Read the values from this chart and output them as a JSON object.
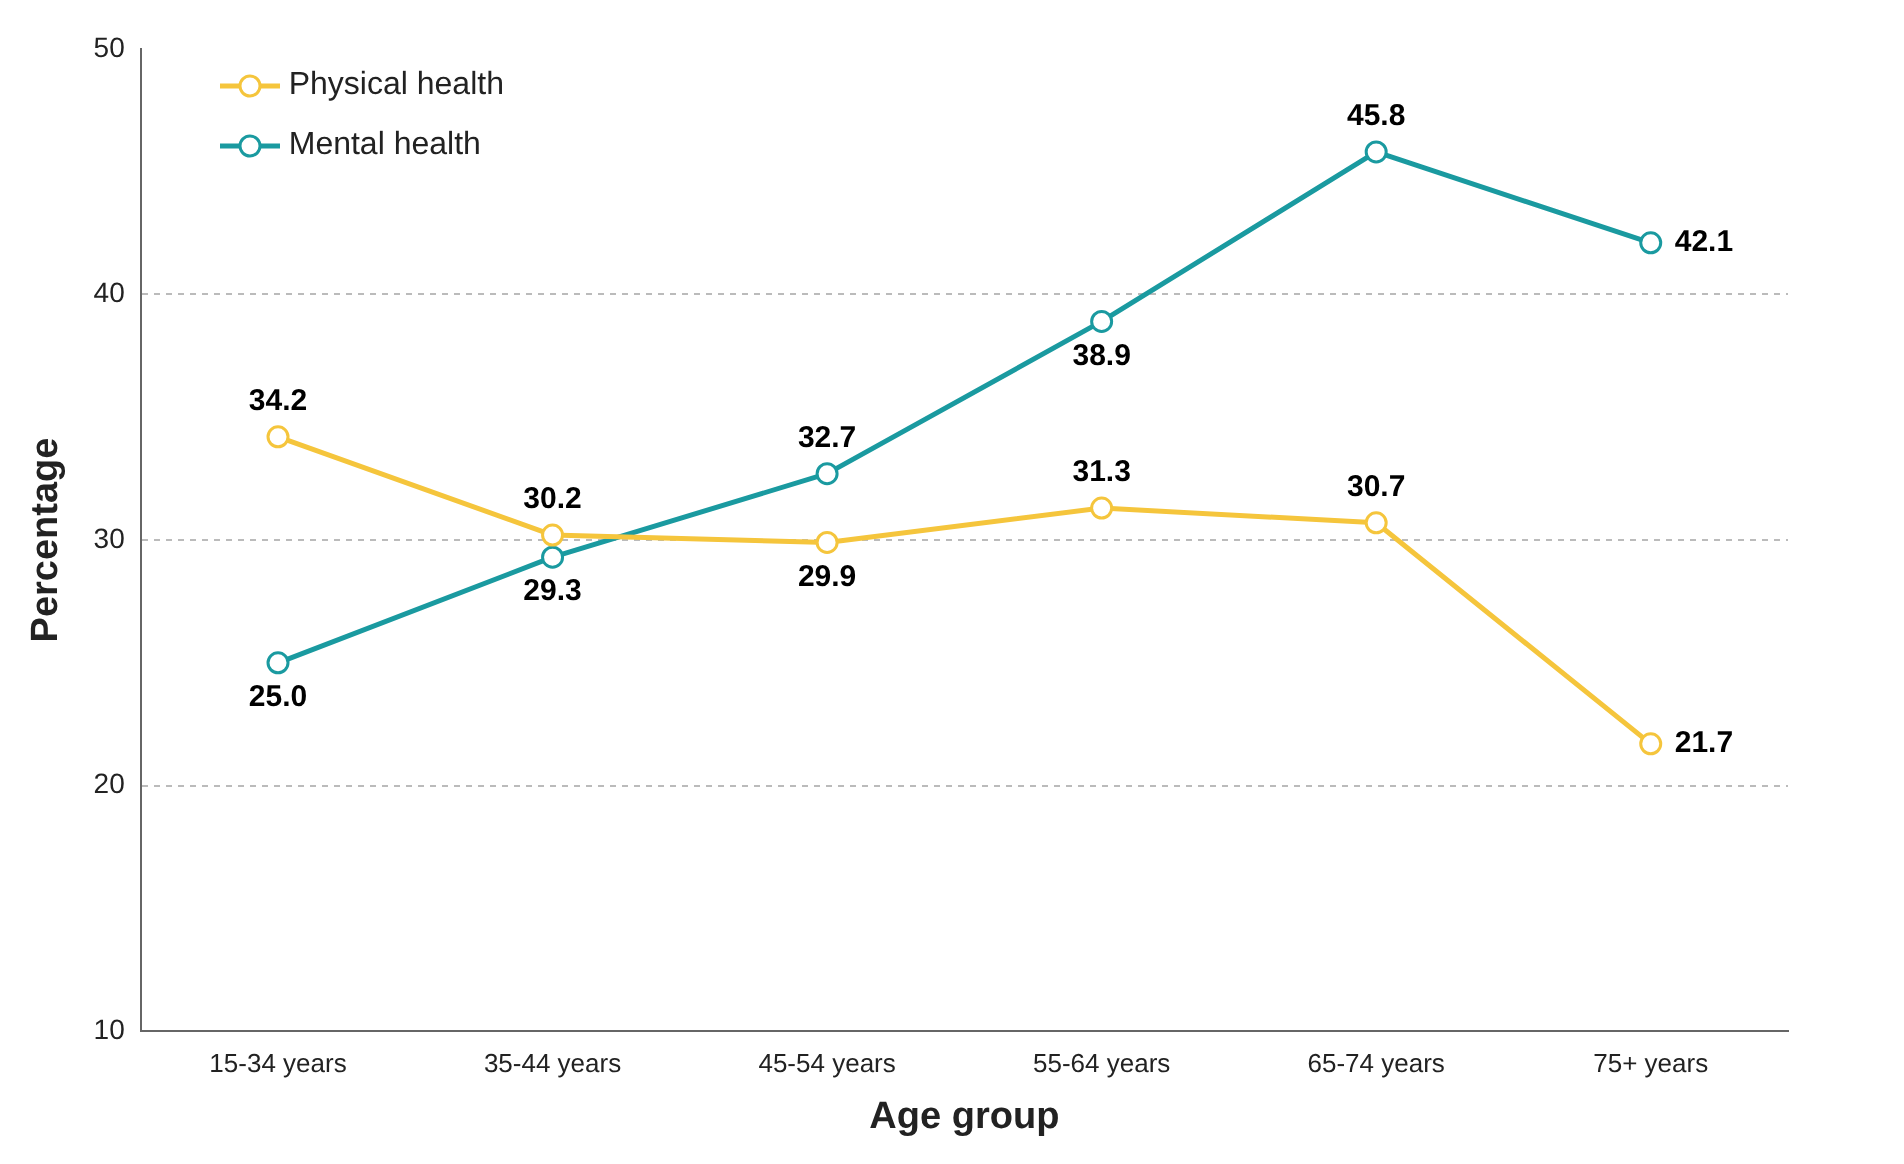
{
  "chart_data": {
    "type": "line",
    "xlabel": "Age group",
    "ylabel": "Percentage",
    "categories": [
      "15-34 years",
      "35-44 years",
      "45-54 years",
      "55-64 years",
      "65-74 years",
      "75+ years"
    ],
    "series": [
      {
        "name": "Physical health",
        "color": "#f5c53c",
        "values": [
          34.2,
          30.2,
          29.9,
          31.3,
          30.7,
          21.7
        ],
        "value_labels": [
          "34.2",
          "30.2",
          "29.9",
          "31.3",
          "30.7",
          "21.7"
        ]
      },
      {
        "name": "Mental health",
        "color": "#1a9aa0",
        "values": [
          25.0,
          29.3,
          32.7,
          38.9,
          45.8,
          42.1
        ],
        "value_labels": [
          "25.0",
          "29.3",
          "32.7",
          "38.9",
          "45.8",
          "42.1"
        ]
      }
    ],
    "ylim": [
      10,
      50
    ],
    "yticks": [
      10,
      20,
      30,
      40,
      50
    ],
    "grid": "y",
    "legend": "top left",
    "marker": "circle",
    "line_style": "solid"
  }
}
